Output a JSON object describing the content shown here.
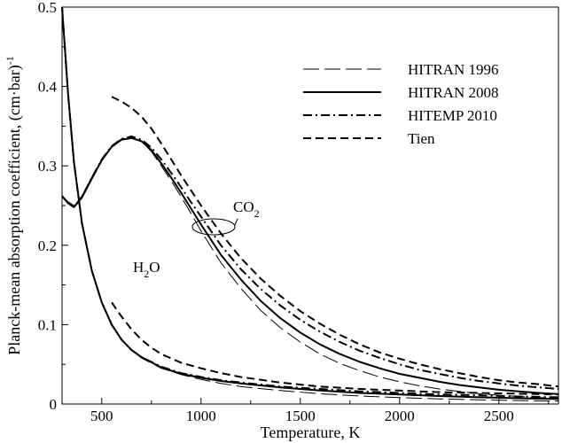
{
  "chart_data": {
    "type": "line",
    "xlabel": "Temperature, K",
    "ylabel": "Planck-mean absorption coefficient, (cm·bar)",
    "ylabel_superscript": "-1",
    "xlim": [
      300,
      2800
    ],
    "ylim": [
      0,
      0.5
    ],
    "x_ticks": [
      "500",
      "1000",
      "1500",
      "2000",
      "2500"
    ],
    "y_ticks": [
      "0",
      "0.1",
      "0.2",
      "0.3",
      "0.4",
      "0.5"
    ],
    "legend_placement": "top-right",
    "legend": [
      {
        "label": "HITRAN 1996",
        "style": "long-dash-thin"
      },
      {
        "label": "HITRAN 2008",
        "style": "solid"
      },
      {
        "label": "HITEMP 2010",
        "style": "dash-dot"
      },
      {
        "label": "Tien",
        "style": "dashed"
      }
    ],
    "annotations": {
      "co2": {
        "text": "CO",
        "subscript": "2",
        "x": 1160,
        "y": 0.228
      },
      "h2o": {
        "text": "H",
        "subscript": "2",
        "suffix": "O",
        "x": 660,
        "y": 0.137
      }
    },
    "series": [
      {
        "name": "HITRAN 1996",
        "species": "CO2",
        "style": "long-dash-thin",
        "x": [
          300,
          330,
          360,
          400,
          450,
          500,
          550,
          600,
          650,
          700,
          750,
          800,
          850,
          900,
          950,
          1000,
          1100,
          1200,
          1300,
          1400,
          1500,
          1600,
          1700,
          1800,
          1900,
          2000,
          2100,
          2200,
          2300,
          2400,
          2500,
          2600,
          2700,
          2800
        ],
        "y": [
          0.262,
          0.255,
          0.25,
          0.262,
          0.286,
          0.308,
          0.325,
          0.334,
          0.336,
          0.331,
          0.318,
          0.3,
          0.281,
          0.261,
          0.24,
          0.218,
          0.178,
          0.146,
          0.118,
          0.096,
          0.078,
          0.063,
          0.051,
          0.042,
          0.034,
          0.028,
          0.023,
          0.019,
          0.016,
          0.013,
          0.011,
          0.0095,
          0.0082,
          0.0072
        ]
      },
      {
        "name": "HITRAN 2008",
        "species": "CO2",
        "style": "solid",
        "x": [
          300,
          330,
          360,
          400,
          450,
          500,
          550,
          600,
          650,
          700,
          750,
          800,
          850,
          900,
          950,
          1000,
          1100,
          1200,
          1300,
          1400,
          1500,
          1600,
          1700,
          1800,
          1900,
          2000,
          2100,
          2200,
          2300,
          2400,
          2500,
          2600,
          2700,
          2800
        ],
        "y": [
          0.262,
          0.253,
          0.248,
          0.26,
          0.284,
          0.307,
          0.324,
          0.333,
          0.335,
          0.331,
          0.32,
          0.303,
          0.285,
          0.266,
          0.246,
          0.226,
          0.188,
          0.157,
          0.13,
          0.108,
          0.09,
          0.075,
          0.063,
          0.053,
          0.045,
          0.038,
          0.033,
          0.028,
          0.024,
          0.021,
          0.018,
          0.016,
          0.014,
          0.0125
        ]
      },
      {
        "name": "HITEMP 2010",
        "species": "CO2",
        "style": "dash-dot",
        "x": [
          300,
          330,
          360,
          400,
          450,
          500,
          550,
          600,
          650,
          700,
          750,
          800,
          850,
          900,
          950,
          1000,
          1100,
          1200,
          1300,
          1400,
          1500,
          1600,
          1700,
          1800,
          1900,
          2000,
          2100,
          2200,
          2300,
          2400,
          2500,
          2600,
          2700,
          2800
        ],
        "y": [
          0.262,
          0.253,
          0.248,
          0.261,
          0.285,
          0.308,
          0.325,
          0.334,
          0.337,
          0.333,
          0.323,
          0.308,
          0.291,
          0.273,
          0.254,
          0.236,
          0.2,
          0.17,
          0.145,
          0.124,
          0.106,
          0.091,
          0.078,
          0.067,
          0.058,
          0.05,
          0.043,
          0.038,
          0.033,
          0.029,
          0.026,
          0.023,
          0.021,
          0.019
        ]
      },
      {
        "name": "Tien",
        "species": "CO2",
        "style": "dashed",
        "x": [
          550,
          600,
          650,
          700,
          750,
          800,
          850,
          900,
          950,
          1000,
          1100,
          1200,
          1300,
          1400,
          1500,
          1600,
          1700,
          1800,
          1900,
          2000,
          2100,
          2200,
          2300,
          2400,
          2500,
          2600,
          2700,
          2800
        ],
        "y": [
          0.387,
          0.381,
          0.373,
          0.362,
          0.347,
          0.328,
          0.308,
          0.288,
          0.269,
          0.25,
          0.215,
          0.184,
          0.158,
          0.136,
          0.117,
          0.101,
          0.087,
          0.075,
          0.065,
          0.057,
          0.05,
          0.044,
          0.039,
          0.034,
          0.03,
          0.027,
          0.025,
          0.022
        ]
      },
      {
        "name": "HITRAN 1996",
        "species": "H2O",
        "style": "long-dash-thin",
        "x": [
          300,
          330,
          360,
          400,
          450,
          500,
          550,
          600,
          650,
          700,
          800,
          900,
          1000,
          1100,
          1200,
          1400,
          1600,
          1800,
          2000,
          2200,
          2400,
          2600,
          2800
        ],
        "y": [
          0.5,
          0.392,
          0.305,
          0.228,
          0.168,
          0.128,
          0.1,
          0.081,
          0.068,
          0.058,
          0.045,
          0.037,
          0.031,
          0.026,
          0.022,
          0.017,
          0.013,
          0.01,
          0.008,
          0.0065,
          0.0053,
          0.0044,
          0.0037
        ]
      },
      {
        "name": "HITRAN 2008",
        "species": "H2O",
        "style": "solid",
        "x": [
          300,
          330,
          360,
          400,
          450,
          500,
          550,
          600,
          650,
          700,
          800,
          900,
          1000,
          1100,
          1200,
          1400,
          1600,
          1800,
          2000,
          2200,
          2400,
          2600,
          2800
        ],
        "y": [
          0.5,
          0.392,
          0.305,
          0.228,
          0.168,
          0.128,
          0.1,
          0.081,
          0.068,
          0.059,
          0.046,
          0.038,
          0.033,
          0.029,
          0.026,
          0.021,
          0.017,
          0.014,
          0.012,
          0.01,
          0.0085,
          0.0072,
          0.0062
        ]
      },
      {
        "name": "HITEMP 2010",
        "species": "H2O",
        "style": "dash-dot",
        "x": [
          300,
          330,
          360,
          400,
          450,
          500,
          550,
          600,
          650,
          700,
          800,
          900,
          1000,
          1100,
          1200,
          1400,
          1600,
          1800,
          2000,
          2200,
          2400,
          2600,
          2800
        ],
        "y": [
          0.5,
          0.392,
          0.305,
          0.228,
          0.168,
          0.128,
          0.1,
          0.081,
          0.068,
          0.059,
          0.047,
          0.039,
          0.034,
          0.03,
          0.027,
          0.022,
          0.019,
          0.016,
          0.014,
          0.012,
          0.011,
          0.0095,
          0.0085
        ]
      },
      {
        "name": "Tien",
        "species": "H2O",
        "style": "dashed",
        "x": [
          550,
          600,
          650,
          700,
          750,
          800,
          900,
          1000,
          1100,
          1200,
          1400,
          1600,
          1800,
          2000,
          2200,
          2400,
          2600,
          2800
        ],
        "y": [
          0.128,
          0.11,
          0.094,
          0.081,
          0.071,
          0.063,
          0.052,
          0.045,
          0.039,
          0.034,
          0.027,
          0.022,
          0.019,
          0.017,
          0.015,
          0.014,
          0.013,
          0.012
        ]
      }
    ]
  }
}
